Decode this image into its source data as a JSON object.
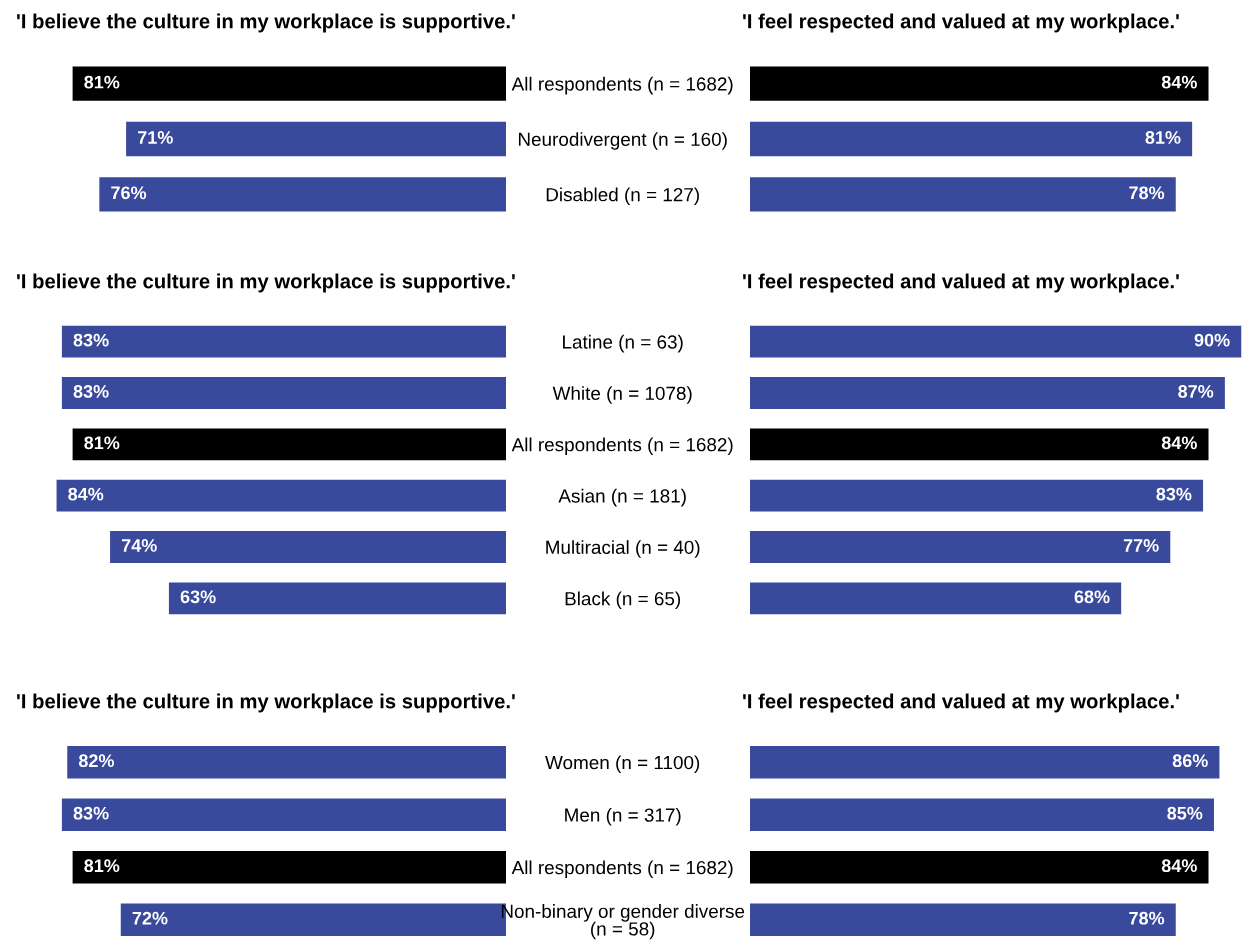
{
  "chart_data": [
    {
      "type": "bar",
      "orientation": "horizontal",
      "title": "'I believe the culture in my workplace is supportive.'",
      "categories": [
        "All respondents (n = 1682)",
        "Neurodivergent (n = 160)",
        "Disabled (n = 127)"
      ],
      "values": [
        81,
        71,
        76
      ],
      "value_labels": [
        "81%",
        "71%",
        "76%"
      ],
      "colors": [
        "#000000",
        "#394a9c",
        "#394a9c"
      ],
      "tick_labels": "y"
    },
    {
      "type": "bar",
      "orientation": "horizontal",
      "title": "'I feel respected and valued at my workplace.'",
      "categories": [
        null,
        null,
        null
      ],
      "values": [
        84,
        81,
        78
      ],
      "value_labels": [
        "84%",
        "81%",
        "78%"
      ],
      "colors": [
        "#000000",
        "#394a9c",
        "#394a9c"
      ],
      "tick_labels": false
    },
    {
      "type": "bar",
      "orientation": "horizontal",
      "title": "'I believe the culture in my workplace is supportive.'",
      "categories": [
        "Latine (n = 63)",
        "White (n = 1078)",
        "All respondents (n = 1682)",
        "Asian (n = 181)",
        "Multiracial (n = 40)",
        "Black (n = 65)"
      ],
      "values": [
        83,
        83,
        81,
        84,
        74,
        63
      ],
      "value_labels": [
        "83%",
        "83%",
        "81%",
        "84%",
        "74%",
        "63%"
      ],
      "colors": [
        "#394a9c",
        "#394a9c",
        "#000000",
        "#394a9c",
        "#394a9c",
        "#394a9c"
      ],
      "tick_labels": "y"
    },
    {
      "type": "bar",
      "orientation": "horizontal",
      "title": "'I feel respected and valued at my workplace.'",
      "categories": [
        null,
        null,
        null,
        null,
        null,
        null
      ],
      "values": [
        90,
        87,
        84,
        83,
        77,
        68
      ],
      "value_labels": [
        "90%",
        "87%",
        "84%",
        "83%",
        "77%",
        "68%"
      ],
      "colors": [
        "#394a9c",
        "#394a9c",
        "#000000",
        "#394a9c",
        "#394a9c",
        "#394a9c"
      ],
      "tick_labels": false
    },
    {
      "type": "bar",
      "orientation": "horizontal",
      "title": "'I believe the culture in my workplace is supportive.'",
      "categories": [
        "Women (n = 1100)",
        "Men (n = 317)",
        "All respondents (n = 1682)",
        "Non-binary or gender diverse (n = 58)"
      ],
      "values": [
        82,
        83,
        81,
        72
      ],
      "value_labels": [
        "82%",
        "83%",
        "81%",
        "72%"
      ],
      "colors": [
        "#394a9c",
        "#394a9c",
        "#000000",
        "#394a9c"
      ],
      "tick_labels": "y"
    },
    {
      "type": "bar",
      "orientation": "horizontal",
      "title": "'I feel respected and valued at my workplace.'",
      "categories": [
        null,
        null,
        null,
        null
      ],
      "values": [
        86,
        85,
        84,
        78
      ],
      "value_labels": [
        "86%",
        "85%",
        "84%",
        "78%"
      ],
      "colors": [
        "#394a9c",
        "#394a9c",
        "#000000",
        "#394a9c"
      ],
      "tick_labels": false
    }
  ]
}
